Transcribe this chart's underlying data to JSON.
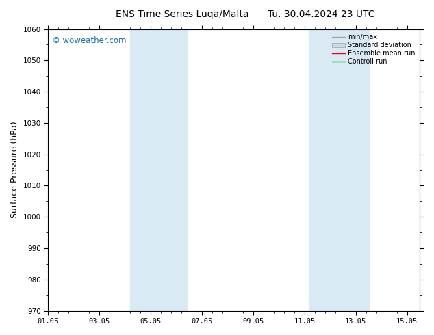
{
  "title_left": "ENS Time Series Luqa/Malta",
  "title_right": "Tu. 30.04.2024 23 UTC",
  "ylabel": "Surface Pressure (hPa)",
  "ylim": [
    970,
    1060
  ],
  "yticks": [
    970,
    980,
    990,
    1000,
    1010,
    1020,
    1030,
    1040,
    1050,
    1060
  ],
  "xlim_days": [
    0,
    14.5
  ],
  "xtick_positions": [
    0,
    2,
    4,
    6,
    8,
    10,
    12,
    14
  ],
  "xtick_labels": [
    "01.05",
    "03.05",
    "05.05",
    "07.05",
    "09.05",
    "11.05",
    "13.05",
    "15.05"
  ],
  "shade_bands": [
    {
      "xmin": 3.2,
      "xmax": 4.2
    },
    {
      "xmin": 4.2,
      "xmax": 5.4
    },
    {
      "xmin": 10.2,
      "xmax": 11.2
    },
    {
      "xmin": 11.2,
      "xmax": 12.5
    }
  ],
  "shade_color": "#daeaf5",
  "watermark": "© woweather.com",
  "watermark_color": "#1a6fa8",
  "bg_color": "#ffffff",
  "plot_bg_color": "#ffffff",
  "title_fontsize": 10,
  "tick_fontsize": 7.5,
  "ylabel_fontsize": 9
}
